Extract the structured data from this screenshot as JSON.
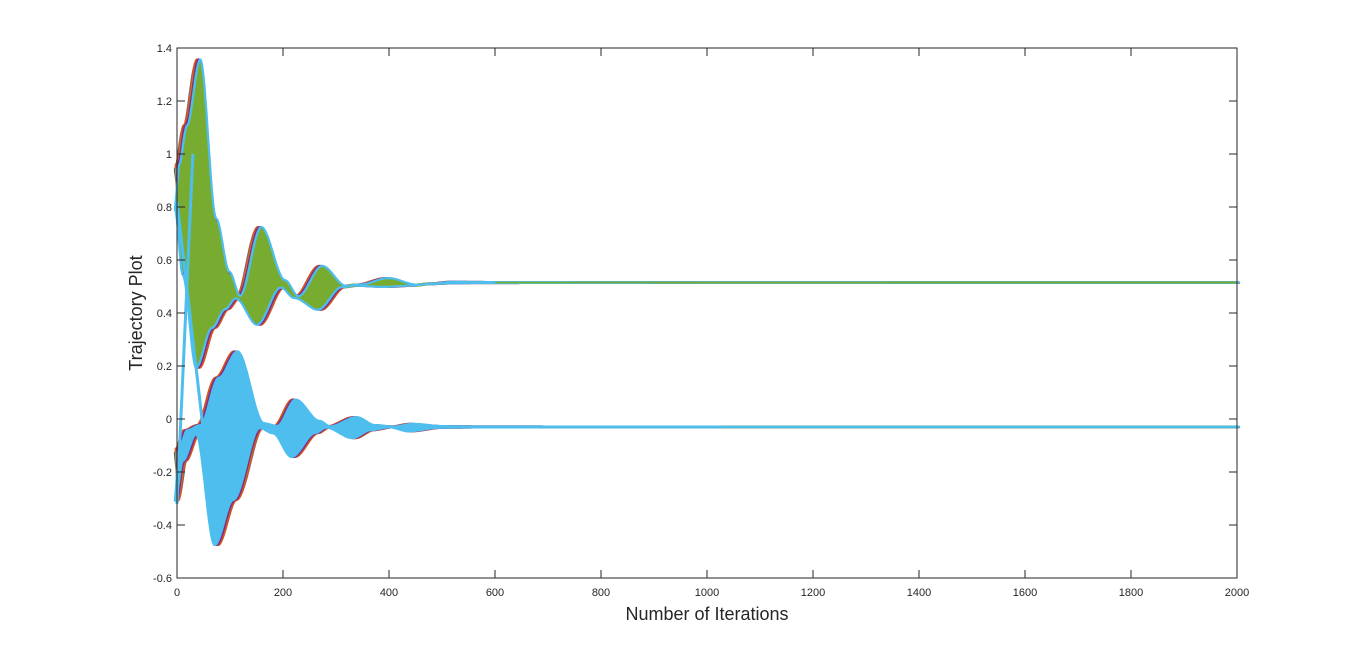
{
  "chart_data": {
    "type": "area",
    "title": "",
    "xlabel": "Number of Iterations",
    "ylabel": "Trajectory Plot",
    "xlim": [
      0,
      2000
    ],
    "ylim": [
      -0.6,
      1.4
    ],
    "x_ticks": [
      0,
      200,
      400,
      600,
      800,
      1000,
      1200,
      1400,
      1600,
      1800,
      2000
    ],
    "y_ticks": [
      -0.6,
      -0.4,
      -0.2,
      0,
      0.2,
      0.4,
      0.6,
      0.8,
      1,
      1.2,
      1.4
    ],
    "x_tick_labels": [
      "0",
      "200",
      "400",
      "600",
      "800",
      "1000",
      "1200",
      "1400",
      "1600",
      "1800",
      "2000"
    ],
    "y_tick_labels": [
      "-0.6",
      "-0.4",
      "-0.2",
      "0",
      "0.2",
      "0.4",
      "0.6",
      "0.8",
      "1",
      "1.2",
      "1.4"
    ],
    "grid": false,
    "colors": [
      "#0072BD",
      "#D95319",
      "#EDB120",
      "#7E2F8E",
      "#77AC30",
      "#4DBEEE"
    ],
    "bands": [
      {
        "steady_value": 0.515,
        "envelope_x": [
          0,
          15,
          40,
          70,
          95,
          115,
          155,
          200,
          225,
          270,
          315,
          340,
          395,
          450,
          475,
          520,
          560,
          600,
          2000
        ],
        "envelope_upper": [
          0.95,
          1.1,
          1.35,
          0.75,
          0.55,
          0.46,
          0.72,
          0.52,
          0.46,
          0.575,
          0.5,
          0.505,
          0.53,
          0.505,
          0.51,
          0.517,
          0.516,
          0.516,
          0.516
        ],
        "envelope_lower": [
          0.8,
          0.55,
          0.2,
          0.35,
          0.42,
          0.46,
          0.36,
          0.5,
          0.46,
          0.415,
          0.5,
          0.505,
          0.5,
          0.505,
          0.51,
          0.513,
          0.514,
          0.514,
          0.514
        ]
      },
      {
        "steady_value": -0.03,
        "envelope_x": [
          0,
          15,
          40,
          75,
          110,
          160,
          185,
          220,
          265,
          285,
          335,
          370,
          405,
          440,
          500,
          560,
          2000
        ],
        "envelope_upper": [
          -0.12,
          -0.05,
          -0.03,
          0.15,
          0.25,
          -0.02,
          -0.03,
          0.07,
          -0.01,
          -0.03,
          0.005,
          -0.025,
          -0.03,
          -0.02,
          -0.028,
          -0.029,
          -0.029
        ],
        "envelope_lower": [
          -0.3,
          -0.15,
          -0.05,
          -0.47,
          -0.3,
          -0.03,
          -0.05,
          -0.14,
          -0.05,
          -0.03,
          -0.07,
          -0.04,
          -0.03,
          -0.045,
          -0.032,
          -0.031,
          -0.031
        ]
      }
    ],
    "crossing_segments": [
      {
        "x": [
          0,
          50
        ],
        "y": [
          0.82,
          -0.05
        ]
      },
      {
        "x": [
          0,
          30
        ],
        "y": [
          -0.32,
          1.0
        ]
      }
    ]
  }
}
